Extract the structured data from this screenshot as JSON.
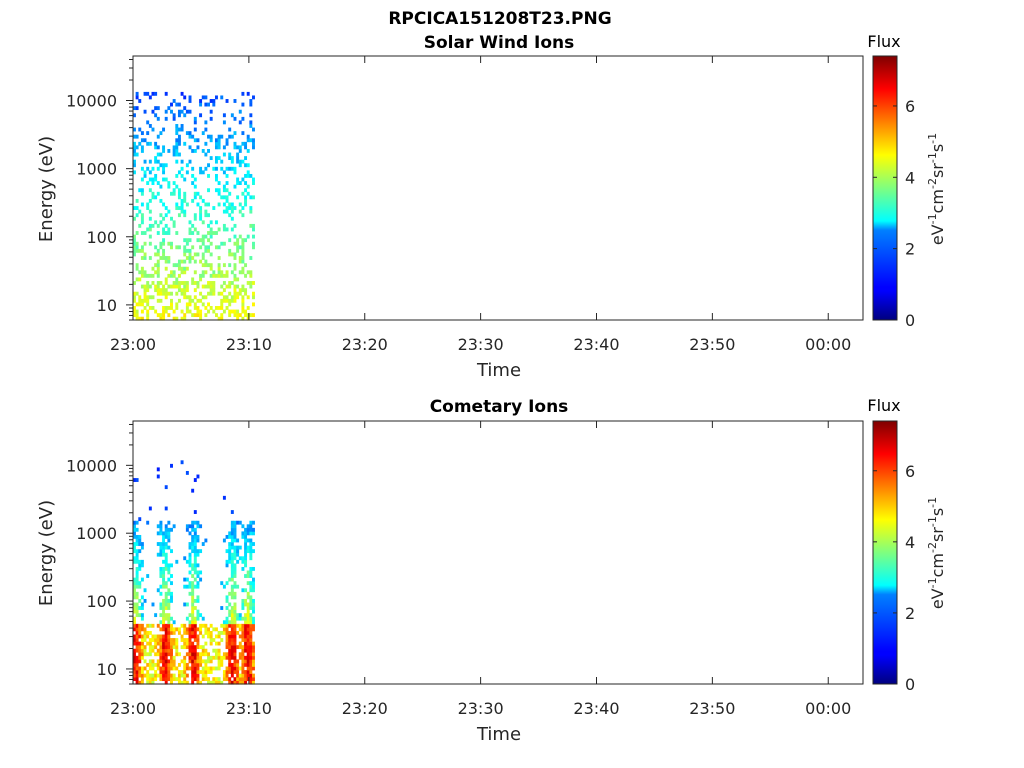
{
  "figure": {
    "title": "RPCICA151208T23.PNG"
  },
  "chart_data": [
    {
      "type": "heatmap",
      "title": "Solar Wind Ions",
      "xlabel": "Time",
      "ylabel": "Energy (eV)",
      "x_tick_labels": [
        "23:00",
        "23:10",
        "23:20",
        "23:30",
        "23:40",
        "23:50",
        "00:00"
      ],
      "x_tick_minutes": [
        0,
        10,
        20,
        30,
        40,
        50,
        60
      ],
      "xlim_minutes": [
        0,
        63
      ],
      "y_scale": "log",
      "ylim": [
        6,
        45000
      ],
      "y_tick_values": [
        10,
        100,
        1000,
        10000
      ],
      "y_tick_labels": [
        "10",
        "100",
        "1000",
        "10000"
      ],
      "data_time_range_minutes": [
        0,
        10.5
      ],
      "colorbar": {
        "title": "Flux",
        "unit_base": [
          "eV",
          "cm",
          "sr",
          "s"
        ],
        "unit_exponents": [
          "-1",
          "-2",
          "-1",
          "-1"
        ],
        "range": [
          0,
          7.4
        ],
        "tick_values": [
          0,
          2,
          4,
          6
        ],
        "tick_labels": [
          "0",
          "2",
          "4",
          "6"
        ],
        "colormap": "jet"
      }
    },
    {
      "type": "heatmap",
      "title": "Cometary Ions",
      "xlabel": "Time",
      "ylabel": "Energy (eV)",
      "x_tick_labels": [
        "23:00",
        "23:10",
        "23:20",
        "23:30",
        "23:40",
        "23:50",
        "00:00"
      ],
      "x_tick_minutes": [
        0,
        10,
        20,
        30,
        40,
        50,
        60
      ],
      "xlim_minutes": [
        0,
        63
      ],
      "y_scale": "log",
      "ylim": [
        6,
        45000
      ],
      "y_tick_values": [
        10,
        100,
        1000,
        10000
      ],
      "y_tick_labels": [
        "10",
        "100",
        "1000",
        "10000"
      ],
      "data_time_range_minutes": [
        0,
        10.5
      ],
      "colorbar": {
        "title": "Flux",
        "unit_base": [
          "eV",
          "cm",
          "sr",
          "s"
        ],
        "unit_exponents": [
          "-1",
          "-2",
          "-1",
          "-1"
        ],
        "range": [
          0,
          7.4
        ],
        "tick_values": [
          0,
          2,
          4,
          6
        ],
        "tick_labels": [
          "0",
          "2",
          "4",
          "6"
        ],
        "colormap": "jet"
      }
    }
  ]
}
